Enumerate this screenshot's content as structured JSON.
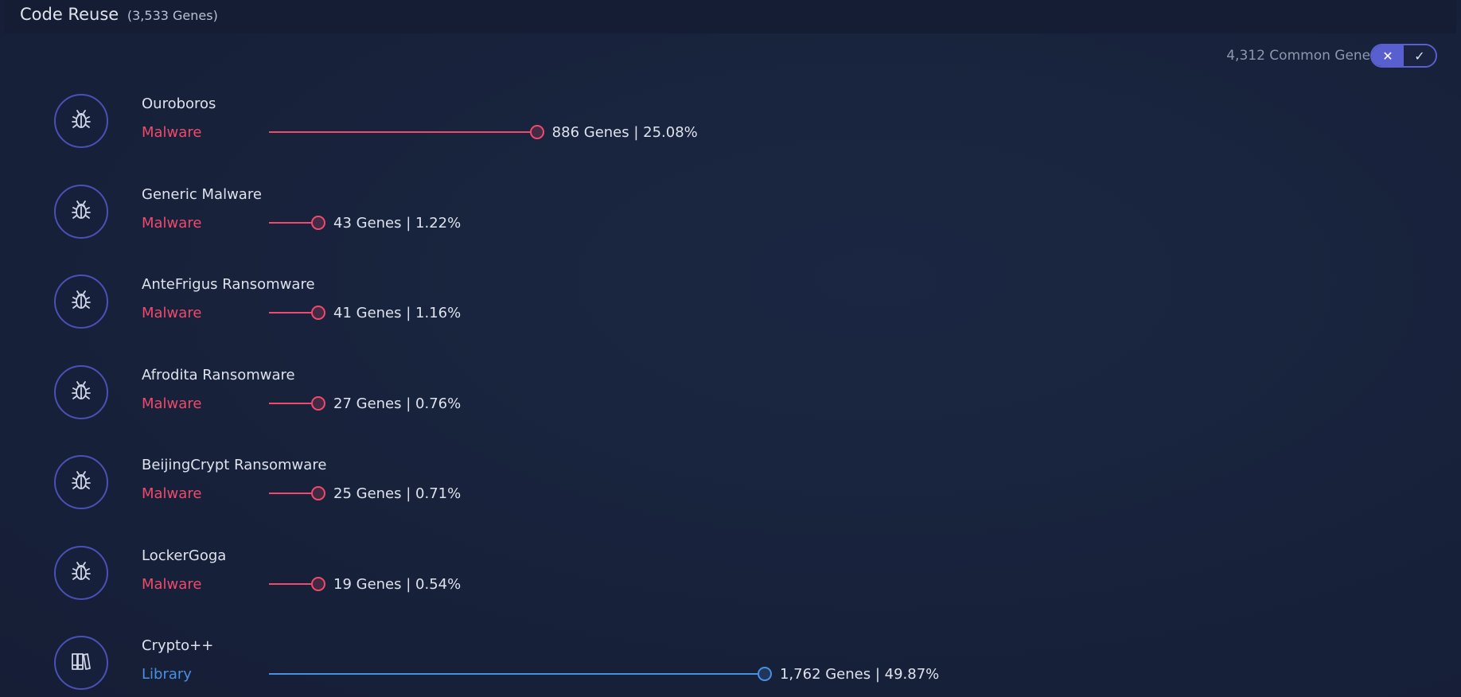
{
  "header": {
    "title": "Code Reuse",
    "count": "(3,533 Genes)"
  },
  "common": {
    "label": "4,312 Common Genes",
    "toggle_x": "✕",
    "toggle_check": "✓"
  },
  "colors": {
    "malware": "#ef4a6b",
    "library": "#4a90e2"
  },
  "items": [
    {
      "name": "Ouroboros",
      "category": "Malware",
      "icon": "bug-icon",
      "stat": "886 Genes | 25.08%",
      "percent": 25.08
    },
    {
      "name": "Generic Malware",
      "category": "Malware",
      "icon": "bug-icon",
      "stat": "43 Genes | 1.22%",
      "percent": 1.22
    },
    {
      "name": "AnteFrigus Ransomware",
      "category": "Malware",
      "icon": "bug-icon",
      "stat": "41 Genes | 1.16%",
      "percent": 1.16
    },
    {
      "name": "Afrodita Ransomware",
      "category": "Malware",
      "icon": "bug-icon",
      "stat": "27 Genes | 0.76%",
      "percent": 0.76
    },
    {
      "name": "BeijingCrypt Ransomware",
      "category": "Malware",
      "icon": "bug-icon",
      "stat": "25 Genes | 0.71%",
      "percent": 0.71
    },
    {
      "name": "LockerGoga",
      "category": "Malware",
      "icon": "bug-icon",
      "stat": "19 Genes | 0.54%",
      "percent": 0.54
    },
    {
      "name": "Crypto++",
      "category": "Library",
      "icon": "books-icon",
      "stat": "1,762 Genes | 49.87%",
      "percent": 49.87
    }
  ]
}
